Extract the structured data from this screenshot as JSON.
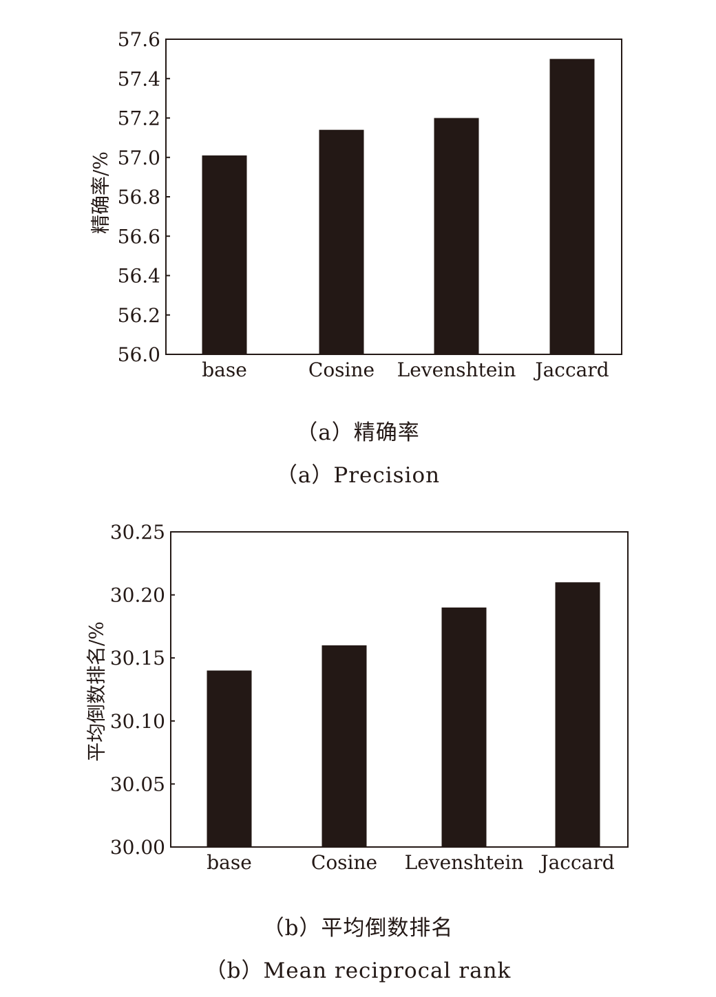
{
  "chart_data": [
    {
      "type": "bar",
      "categories": [
        "base",
        "Cosine",
        "Levenshtein",
        "Jaccard"
      ],
      "values": [
        57.01,
        57.14,
        57.2,
        57.5
      ],
      "ylabel": "精确率/%",
      "xlabel": "",
      "ylim": [
        56.0,
        57.6
      ],
      "yticks": [
        "56.0",
        "56.2",
        "56.4",
        "56.6",
        "56.8",
        "57.0",
        "57.2",
        "57.4",
        "57.6"
      ],
      "caption_cn": "（a）精确率",
      "caption_en": "（a）Precision",
      "bar_color": "#231815",
      "grid": false
    },
    {
      "type": "bar",
      "categories": [
        "base",
        "Cosine",
        "Levenshtein",
        "Jaccard"
      ],
      "values": [
        30.14,
        30.16,
        30.19,
        30.21
      ],
      "ylabel": "平均倒数排名/%",
      "xlabel": "",
      "ylim": [
        30.0,
        30.25
      ],
      "yticks": [
        "30.00",
        "30.05",
        "30.10",
        "30.15",
        "30.20",
        "30.25"
      ],
      "caption_cn": "（b）平均倒数排名",
      "caption_en": "（b）Mean reciprocal rank",
      "bar_color": "#231815",
      "grid": false
    }
  ]
}
